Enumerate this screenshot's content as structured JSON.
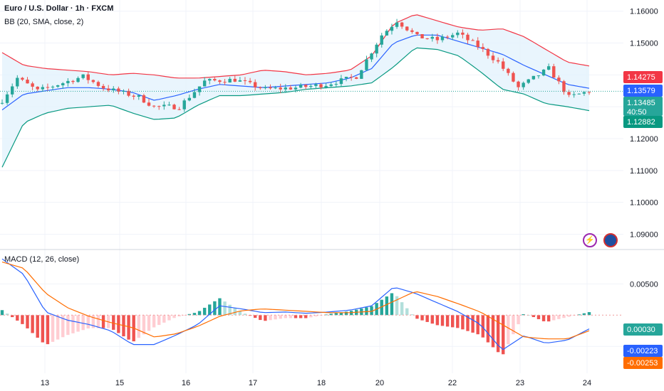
{
  "header": {
    "title": "Euro / U.S. Dollar · 1h · FXCM",
    "bb_label": "BB (20, SMA, close, 2)",
    "macd_label": "MACD (12, 26, close)"
  },
  "colors": {
    "bull": "#26a69a",
    "bear": "#ef5350",
    "bb_upper": "#f23645",
    "bb_basis": "#2962ff",
    "bb_lower": "#089981",
    "bb_fill": "#e3f2fd",
    "macd_line": "#2962ff",
    "signal_line": "#ff6d00",
    "grid": "#f0f3fa"
  },
  "icons": [
    "lightning-icon",
    "eu-us-flag-icon"
  ],
  "chart_data": [
    {
      "type": "candlestick",
      "title": "Euro / U.S. Dollar · 1h · FXCM",
      "indicator": "BB (20, SMA, close, 2)",
      "x_ticks": [
        "13",
        "15",
        "16",
        "17",
        "18",
        "20",
        "22",
        "23",
        "24"
      ],
      "y_ticks": [
        "1.16000",
        "1.15000",
        "1.14000",
        "1.13000",
        "1.12000",
        "1.11000",
        "1.10000",
        "1.09000"
      ],
      "ylim": [
        1.0852,
        1.1635
      ],
      "price_labels": {
        "bb_upper": "1.14275",
        "bb_basis": "1.13579",
        "last_price": "1.13485",
        "countdown": "40:50",
        "bb_lower": "1.12882"
      },
      "close_keypoints": [
        {
          "x": 0,
          "y": 1.132
        },
        {
          "x": 3,
          "y": 1.139
        },
        {
          "x": 7,
          "y": 1.135
        },
        {
          "x": 12,
          "y": 1.1375
        },
        {
          "x": 16,
          "y": 1.1395
        },
        {
          "x": 20,
          "y": 1.136
        },
        {
          "x": 27,
          "y": 1.133
        },
        {
          "x": 30,
          "y": 1.13
        },
        {
          "x": 35,
          "y": 1.13
        },
        {
          "x": 40,
          "y": 1.138
        },
        {
          "x": 46,
          "y": 1.1385
        },
        {
          "x": 52,
          "y": 1.1355
        },
        {
          "x": 58,
          "y": 1.136
        },
        {
          "x": 64,
          "y": 1.137
        },
        {
          "x": 70,
          "y": 1.1395
        },
        {
          "x": 75,
          "y": 1.1525
        },
        {
          "x": 78,
          "y": 1.157
        },
        {
          "x": 82,
          "y": 1.152
        },
        {
          "x": 86,
          "y": 1.151
        },
        {
          "x": 90,
          "y": 1.153
        },
        {
          "x": 94,
          "y": 1.149
        },
        {
          "x": 98,
          "y": 1.144
        },
        {
          "x": 102,
          "y": 1.136
        },
        {
          "x": 106,
          "y": 1.14
        },
        {
          "x": 108,
          "y": 1.142
        },
        {
          "x": 112,
          "y": 1.133
        },
        {
          "x": 116,
          "y": 1.1349
        }
      ],
      "bb_upper": [
        1.147,
        1.143,
        1.142,
        1.1415,
        1.141,
        1.14,
        1.1405,
        1.14,
        1.139,
        1.139,
        1.1395,
        1.14,
        1.1415,
        1.141,
        1.14,
        1.1405,
        1.1415,
        1.146,
        1.156,
        1.159,
        1.157,
        1.155,
        1.154,
        1.1545,
        1.152,
        1.148,
        1.144,
        1.1428
      ],
      "bb_basis": [
        1.129,
        1.134,
        1.135,
        1.136,
        1.136,
        1.1355,
        1.1345,
        1.132,
        1.1335,
        1.1355,
        1.137,
        1.1365,
        1.136,
        1.1365,
        1.137,
        1.1375,
        1.139,
        1.142,
        1.15,
        1.1525,
        1.1525,
        1.1505,
        1.1485,
        1.1465,
        1.143,
        1.14,
        1.137,
        1.1358
      ],
      "bb_lower": [
        1.111,
        1.125,
        1.128,
        1.1295,
        1.13,
        1.1305,
        1.128,
        1.126,
        1.1265,
        1.1305,
        1.1335,
        1.1335,
        1.134,
        1.1345,
        1.1355,
        1.136,
        1.1365,
        1.1375,
        1.1425,
        1.1485,
        1.148,
        1.146,
        1.141,
        1.1355,
        1.134,
        1.131,
        1.13,
        1.1288
      ]
    },
    {
      "type": "macd",
      "title": "MACD (12, 26, close)",
      "y_ticks": [
        "0.00500"
      ],
      "ylim": [
        -0.0093,
        0.0105
      ],
      "value_labels": {
        "histogram": "0.00030",
        "macd": "-0.00223",
        "signal": "-0.00253"
      },
      "macd": [
        0.009,
        0.0065,
        0.0005,
        -0.0008,
        -0.0015,
        -0.0025,
        -0.0047,
        -0.0047,
        -0.0032,
        -0.0015,
        0.0015,
        0.001,
        0.0004,
        0.0005,
        0.0003,
        0.0005,
        0.0008,
        0.0015,
        0.0045,
        0.0035,
        0.002,
        0.0005,
        -0.0015,
        -0.0056,
        -0.0033,
        -0.0045,
        -0.004,
        -0.0022
      ],
      "signal": [
        0.0085,
        0.0075,
        0.0035,
        0.0012,
        -0.0002,
        -0.0012,
        -0.002,
        -0.0035,
        -0.003,
        -0.0018,
        -0.0002,
        0.0007,
        0.001,
        0.0008,
        0.0006,
        0.0004,
        0.0004,
        0.0006,
        0.0022,
        0.0038,
        0.003,
        0.0018,
        0.0005,
        -0.0015,
        -0.0035,
        -0.0038,
        -0.0038,
        -0.0025
      ]
    }
  ]
}
